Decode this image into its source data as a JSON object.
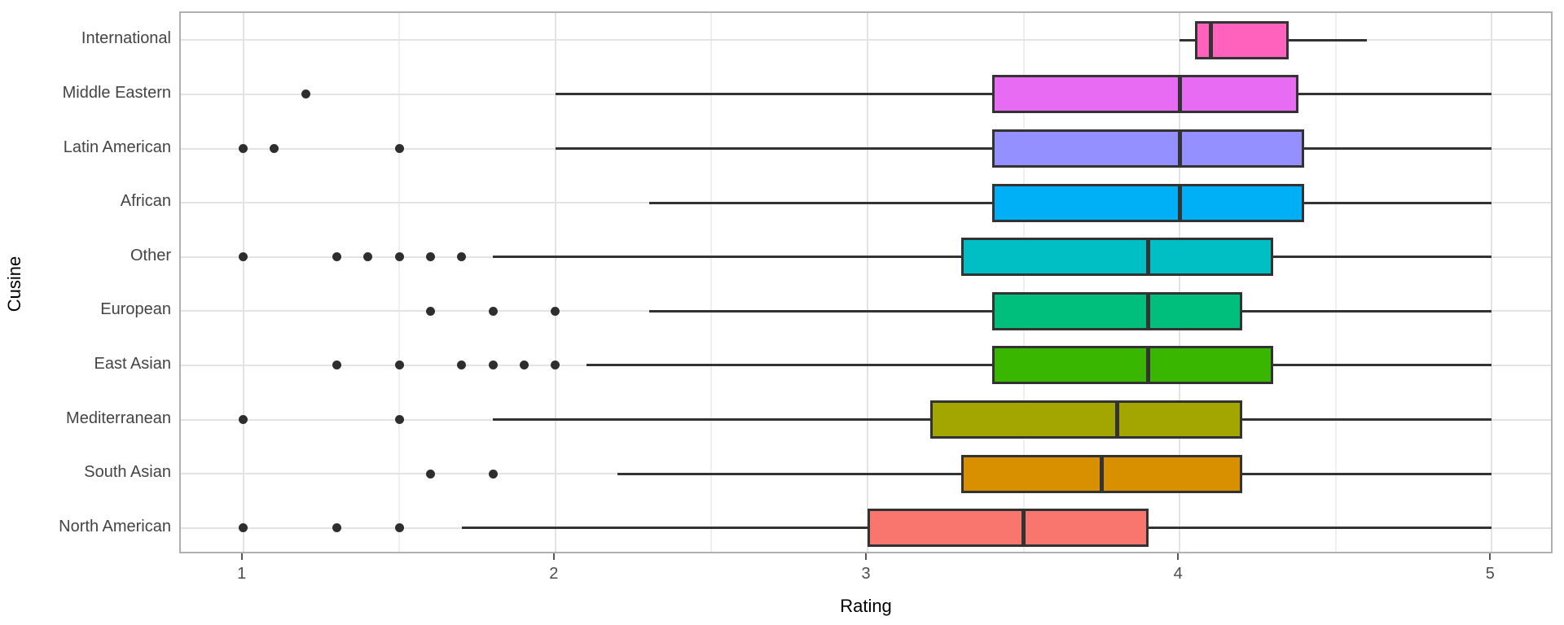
{
  "chart_data": {
    "type": "boxplot",
    "orientation": "horizontal",
    "title": "",
    "xlabel": "Rating",
    "ylabel": "Cusine",
    "xlim": [
      0.8,
      5.2
    ],
    "x_major_ticks": [
      1,
      2,
      3,
      4,
      5
    ],
    "x_minor_ticks": [
      1.5,
      2.5,
      3.5,
      4.5
    ],
    "grid": true,
    "legend": "none",
    "categories_top_to_bottom": [
      "International",
      "Middle Eastern",
      "Latin American",
      "African",
      "Other",
      "European",
      "East Asian",
      "Mediterranean",
      "South Asian",
      "North American"
    ],
    "series": [
      {
        "category": "International",
        "color": "#FF62BC",
        "whisker_min": 4.0,
        "q1": 4.05,
        "median": 4.1,
        "q3": 4.35,
        "whisker_max": 4.6,
        "outliers": []
      },
      {
        "category": "Middle Eastern",
        "color": "#E76BF3",
        "whisker_min": 2.0,
        "q1": 3.4,
        "median": 4.0,
        "q3": 4.38,
        "whisker_max": 5.0,
        "outliers": [
          1.2
        ]
      },
      {
        "category": "Latin American",
        "color": "#9590FF",
        "whisker_min": 2.0,
        "q1": 3.4,
        "median": 4.0,
        "q3": 4.4,
        "whisker_max": 5.0,
        "outliers": [
          1.0,
          1.1,
          1.5
        ]
      },
      {
        "category": "African",
        "color": "#00B0F6",
        "whisker_min": 2.3,
        "q1": 3.4,
        "median": 4.0,
        "q3": 4.4,
        "whisker_max": 5.0,
        "outliers": []
      },
      {
        "category": "Other",
        "color": "#00BFC4",
        "whisker_min": 1.8,
        "q1": 3.3,
        "median": 3.9,
        "q3": 4.3,
        "whisker_max": 5.0,
        "outliers": [
          1.0,
          1.3,
          1.4,
          1.5,
          1.6,
          1.7
        ]
      },
      {
        "category": "European",
        "color": "#00BF7D",
        "whisker_min": 2.3,
        "q1": 3.4,
        "median": 3.9,
        "q3": 4.2,
        "whisker_max": 5.0,
        "outliers": [
          1.6,
          1.8,
          2.0
        ]
      },
      {
        "category": "East Asian",
        "color": "#39B600",
        "whisker_min": 2.1,
        "q1": 3.4,
        "median": 3.9,
        "q3": 4.3,
        "whisker_max": 5.0,
        "outliers": [
          1.3,
          1.5,
          1.7,
          1.8,
          1.9,
          2.0
        ]
      },
      {
        "category": "Mediterranean",
        "color": "#A3A500",
        "whisker_min": 1.8,
        "q1": 3.2,
        "median": 3.8,
        "q3": 4.2,
        "whisker_max": 5.0,
        "outliers": [
          1.0,
          1.5
        ]
      },
      {
        "category": "South Asian",
        "color": "#D89000",
        "whisker_min": 2.2,
        "q1": 3.3,
        "median": 3.75,
        "q3": 4.2,
        "whisker_max": 5.0,
        "outliers": [
          1.6,
          1.8
        ]
      },
      {
        "category": "North American",
        "color": "#F8766D",
        "whisker_min": 1.7,
        "q1": 3.0,
        "median": 3.5,
        "q3": 3.9,
        "whisker_max": 5.0,
        "outliers": [
          1.0,
          1.3,
          1.5
        ]
      }
    ],
    "style": {
      "box_border_color": "#333333",
      "median_color": "#333333",
      "whisker_color": "#333333",
      "outlier_color": "#2e2e2e",
      "grid_major_color": "#e3e3e3",
      "grid_minor_color": "#efefef",
      "panel_border_color": "#b0b0b0",
      "tick_color": "#575757",
      "axis_text_color": "#4d4d4d",
      "category_text_color": "#444444",
      "axis_title_color": "#000000",
      "background": "#ffffff"
    }
  }
}
